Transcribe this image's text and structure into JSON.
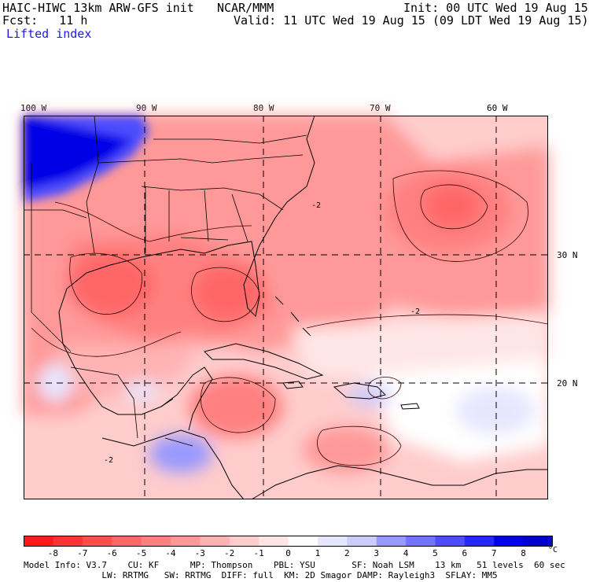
{
  "header": {
    "model": "HAIC-HIWC 13km ARW-GFS init",
    "org": "NCAR/MMM",
    "init": "Init: 00 UTC Wed 19 Aug 15",
    "fcst": "Fcst:   11 h",
    "valid": "Valid: 11 UTC Wed 19 Aug 15 (09 LDT Wed 19 Aug 15)",
    "field": "Lifted index"
  },
  "map": {
    "lon_labels": [
      "100 W",
      "90 W",
      "80 W",
      "70 W",
      "60 W"
    ],
    "lat_labels": [
      "30 N",
      "20 N"
    ],
    "contour_label": "-2"
  },
  "colorbar": {
    "ticks": [
      "-8",
      "-7",
      "-6",
      "-5",
      "-4",
      "-3",
      "-2",
      "-1",
      "0",
      "1",
      "2",
      "3",
      "4",
      "5",
      "6",
      "7",
      "8"
    ],
    "units": "°C",
    "colors": [
      "#ff1a1a",
      "#ff3333",
      "#ff4d4d",
      "#ff6666",
      "#ff8080",
      "#ff9999",
      "#ffb3b3",
      "#ffcccc",
      "#ffe6e6",
      "#ffffff",
      "#e6e6ff",
      "#ccccff",
      "#9999ff",
      "#7373ff",
      "#4d4dff",
      "#2626ff",
      "#0000e6"
    ]
  },
  "footer": {
    "line1": "Model Info: V3.7    CU: KF      MP: Thompson    PBL: YSU       SF: Noah LSM    13 km   51 levels  60 sec",
    "line2": "               LW: RRTMG   SW: RRTMG  DIFF: full  KM: 2D Smagor DAMP: Rayleigh3  SFLAY: MM5"
  }
}
